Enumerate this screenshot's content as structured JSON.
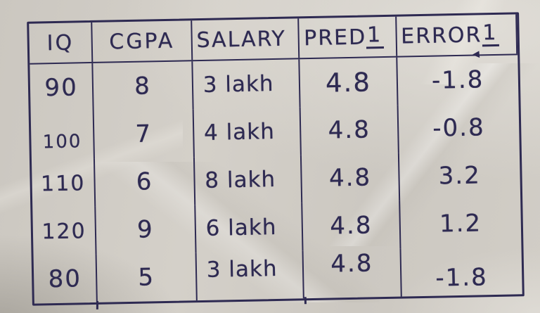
{
  "table": {
    "columns": [
      {
        "label": "IQ",
        "suffix": ""
      },
      {
        "label": "CGPA",
        "suffix": ""
      },
      {
        "label": "SALARY",
        "suffix": ""
      },
      {
        "label": "PRED",
        "suffix": "1"
      },
      {
        "label": "ERROR",
        "suffix": "1"
      }
    ],
    "rows": [
      {
        "cells": [
          "90",
          "8",
          "3 lakh",
          "4.8",
          "-1.8"
        ]
      },
      {
        "cells": [
          "100",
          "7",
          "4 lakh",
          "4.8",
          "-0.8"
        ]
      },
      {
        "cells": [
          "110",
          "6",
          "8 lakh",
          "4.8",
          "3.2"
        ]
      },
      {
        "cells": [
          "120",
          "9",
          "6 lakh",
          "4.8",
          "1.2"
        ]
      },
      {
        "cells": [
          "80",
          "5",
          "3 lakh",
          "4.8",
          "-1.8"
        ]
      }
    ]
  },
  "colors": {
    "ink": "#2e2a52",
    "paper": "#d1cdc6"
  }
}
